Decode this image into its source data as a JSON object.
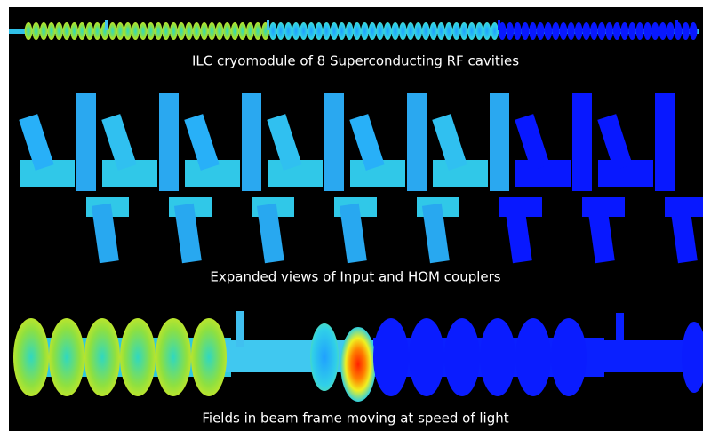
{
  "captions": [
    "ILC cryomodule of 8 Superconducting RF cavities",
    "Expanded views of Input and HOM couplers",
    "Fields in beam frame moving at speed of light"
  ]
}
